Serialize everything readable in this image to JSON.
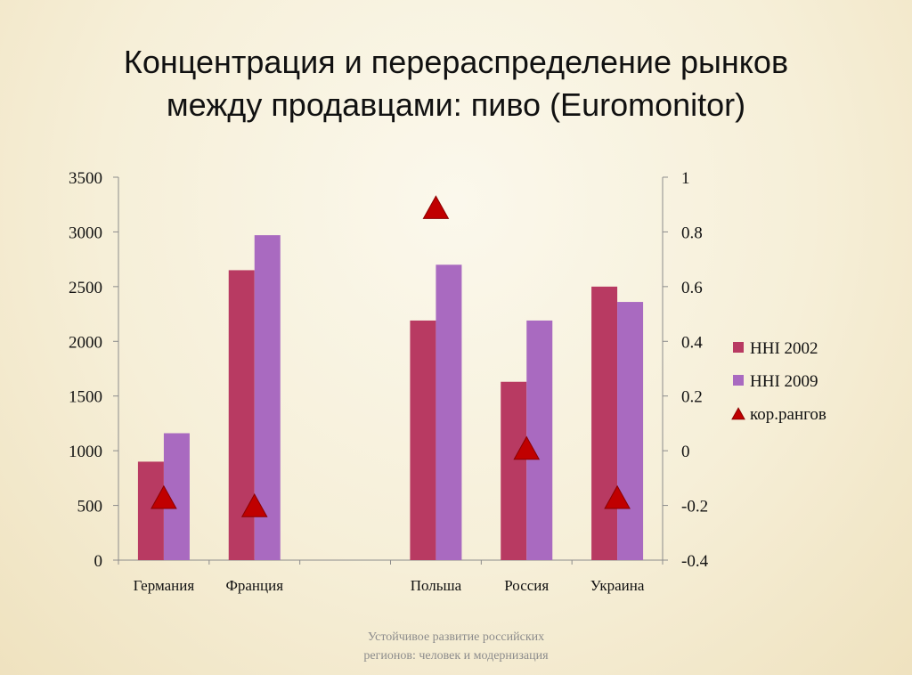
{
  "slide": {
    "title_line1": "Концентрация и перераспределение рынков",
    "title_line2": "между продавцами: пиво (Euromonitor)",
    "footer_line1": "Устойчивое развитие российских",
    "footer_line2": "регионов: человек и модернизация"
  },
  "chart_data": {
    "type": "bar",
    "categories": [
      "Германия",
      "Франция",
      "",
      "Польша",
      "Россия",
      "Украина"
    ],
    "series": [
      {
        "name": "HHI 2002",
        "type": "bar",
        "axis": "left",
        "color": "#b83a62",
        "values": [
          900,
          2650,
          null,
          2190,
          1630,
          2500
        ]
      },
      {
        "name": "HHI 2009",
        "type": "bar",
        "axis": "left",
        "color": "#a96ac0",
        "values": [
          1160,
          2970,
          null,
          2700,
          2190,
          2360
        ]
      },
      {
        "name": "кор.рангов",
        "type": "scatter",
        "marker": "triangle",
        "axis": "right",
        "color": "#c00000",
        "values": [
          -0.18,
          -0.21,
          null,
          0.88,
          0.0,
          -0.18
        ]
      }
    ],
    "y_left": {
      "min": 0,
      "max": 3500,
      "ticks": [
        "0",
        "500",
        "1000",
        "1500",
        "2000",
        "2500",
        "3000",
        "3500"
      ]
    },
    "y_right": {
      "min": -0.4,
      "max": 1,
      "ticks": [
        "-0.4",
        "-0.2",
        "0",
        "0.2",
        "0.4",
        "0.6",
        "0.8",
        "1"
      ]
    },
    "grid": false,
    "legend": "right"
  }
}
